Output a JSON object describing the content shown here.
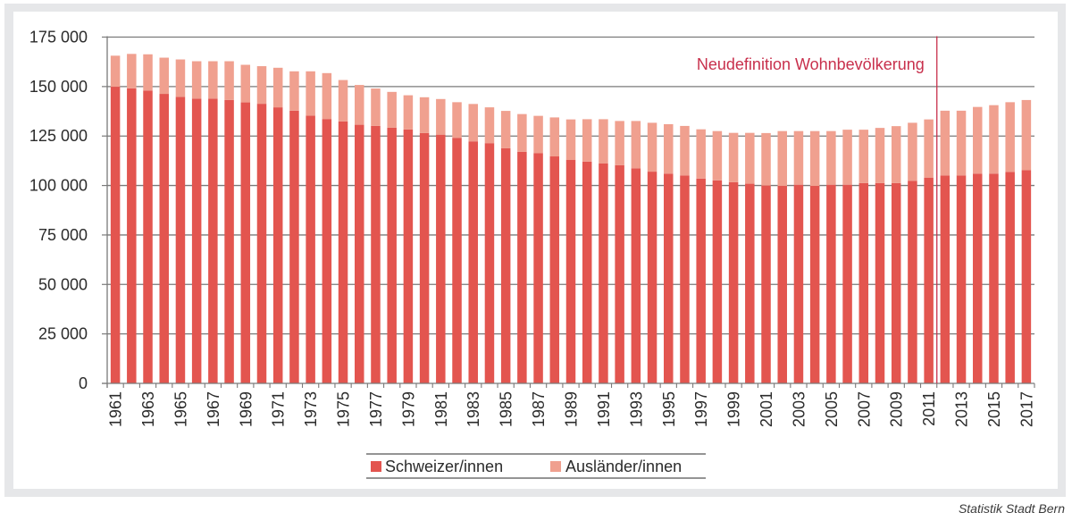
{
  "source_note": "Statistik Stadt Bern",
  "chart_data": {
    "type": "bar",
    "stacked": true,
    "title": "",
    "xlabel": "",
    "ylabel": "",
    "ylim": [
      0,
      175000
    ],
    "yticks": [
      0,
      25000,
      50000,
      75000,
      100000,
      125000,
      150000,
      175000
    ],
    "ytick_labels": [
      "0",
      "25 000",
      "50 000",
      "75 000",
      "100 000",
      "125 000",
      "150 000",
      "175 000"
    ],
    "grid": "horizontal",
    "legend_position": "bottom-center",
    "categories": [
      1961,
      1962,
      1963,
      1964,
      1965,
      1966,
      1967,
      1968,
      1969,
      1970,
      1971,
      1972,
      1973,
      1974,
      1975,
      1976,
      1977,
      1978,
      1979,
      1980,
      1981,
      1982,
      1983,
      1984,
      1985,
      1986,
      1987,
      1988,
      1989,
      1990,
      1991,
      1992,
      1993,
      1994,
      1995,
      1996,
      1997,
      1998,
      1999,
      2000,
      2001,
      2002,
      2003,
      2004,
      2005,
      2006,
      2007,
      2008,
      2009,
      2010,
      2011,
      2012,
      2013,
      2014,
      2015,
      2016,
      2017
    ],
    "xtick_labels": [
      "1961",
      "1963",
      "1965",
      "1967",
      "1969",
      "1971",
      "1973",
      "1975",
      "1977",
      "1979",
      "1981",
      "1983",
      "1985",
      "1987",
      "1989",
      "1991",
      "1993",
      "1995",
      "1997",
      "1999",
      "2001",
      "2003",
      "2005",
      "2007",
      "2009",
      "2011",
      "2013",
      "2015",
      "2017"
    ],
    "series": [
      {
        "name": "Schweizer/innen",
        "color": "#e3554f",
        "values": [
          149900,
          149100,
          148000,
          146300,
          144800,
          143900,
          143900,
          143200,
          142000,
          141300,
          139500,
          137800,
          135300,
          133600,
          132400,
          130700,
          130100,
          129200,
          128300,
          126500,
          125700,
          124100,
          122300,
          121400,
          118800,
          117000,
          116300,
          114700,
          112900,
          112100,
          111100,
          110300,
          108700,
          107000,
          106000,
          105100,
          103500,
          102600,
          101700,
          100900,
          100000,
          99800,
          100400,
          99800,
          100400,
          100400,
          101200,
          101200,
          101200,
          102400,
          104000,
          105100,
          105100,
          106000,
          106000,
          106900,
          107700
        ]
      },
      {
        "name": "Ausländer/innen",
        "color": "#f0a08f",
        "values": [
          15700,
          17400,
          18300,
          18300,
          18900,
          18900,
          18900,
          19600,
          19000,
          19000,
          20000,
          19900,
          22400,
          23200,
          20900,
          20100,
          18900,
          18100,
          17300,
          18100,
          18000,
          18000,
          18900,
          18100,
          18900,
          19100,
          18900,
          19700,
          20500,
          21400,
          22400,
          22300,
          23900,
          24700,
          25000,
          25000,
          24900,
          24900,
          24900,
          25700,
          26500,
          27700,
          27100,
          27700,
          27100,
          27800,
          27000,
          27900,
          28800,
          29300,
          29400,
          32700,
          32700,
          33700,
          34600,
          35200,
          35500
        ]
      }
    ],
    "annotation": {
      "text": "Neudefinition Wohnbevölkerung",
      "between": [
        2011,
        2012
      ],
      "color": "#c8304c"
    }
  }
}
